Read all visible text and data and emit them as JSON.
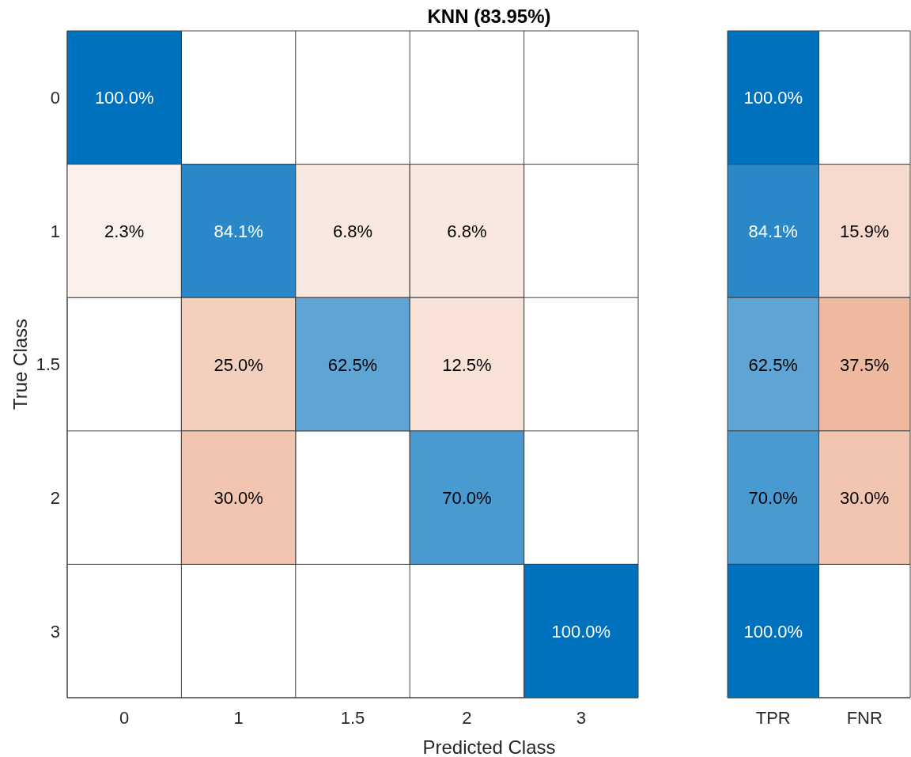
{
  "chart_data": [
    {
      "type": "heatmap",
      "title": "KNN (83.95%)",
      "xlabel": "Predicted Class",
      "ylabel": "True Class",
      "categories": [
        "0",
        "1",
        "1.5",
        "2",
        "3"
      ],
      "y_categories": [
        "0",
        "1",
        "1.5",
        "2",
        "3"
      ],
      "cells": [
        [
          100,
          null,
          null,
          null,
          null
        ],
        [
          2.3,
          84.1,
          6.8,
          6.8,
          null
        ],
        [
          null,
          25.0,
          62.5,
          12.5,
          null
        ],
        [
          null,
          30.0,
          null,
          70.0,
          null
        ],
        [
          null,
          null,
          null,
          null,
          100
        ]
      ],
      "cell_labels": [
        [
          "100.0%",
          null,
          null,
          null,
          null
        ],
        [
          "2.3%",
          "84.1%",
          "6.8%",
          "6.8%",
          null
        ],
        [
          null,
          "25.0%",
          "62.5%",
          "12.5%",
          null
        ],
        [
          null,
          "30.0%",
          null,
          "70.0%",
          null
        ],
        [
          null,
          null,
          null,
          null,
          "100.0%"
        ]
      ],
      "colors": [
        [
          "#0072bd",
          null,
          null,
          null,
          null
        ],
        [
          "#fbf0eb",
          "#2a88c8",
          "#f9e8e0",
          "#f9e8e0",
          null
        ],
        [
          null,
          "#f3cfbd",
          "#5ea5d6",
          "#f8e1d6",
          null
        ],
        [
          null,
          "#f1c5b0",
          null,
          "#4a9ad2",
          null
        ],
        [
          null,
          null,
          null,
          null,
          "#0072bd"
        ]
      ]
    },
    {
      "type": "heatmap",
      "categories": [
        "TPR",
        "FNR"
      ],
      "y_categories": [
        "0",
        "1",
        "1.5",
        "2",
        "3"
      ],
      "tick_labels": "x",
      "cells": [
        [
          100,
          null
        ],
        [
          84.1,
          15.9
        ],
        [
          62.5,
          37.5
        ],
        [
          70.0,
          30.0
        ],
        [
          100,
          null
        ]
      ],
      "cell_labels": [
        [
          "100.0%",
          null
        ],
        [
          "84.1%",
          "15.9%"
        ],
        [
          "62.5%",
          "37.5%"
        ],
        [
          "70.0%",
          "30.0%"
        ],
        [
          "100.0%",
          null
        ]
      ],
      "colors": [
        [
          "#0072bd",
          null
        ],
        [
          "#2a88c8",
          "#f6dacd"
        ],
        [
          "#5ea5d6",
          "#efb9a0"
        ],
        [
          "#4a9ad2",
          "#f1c5b0"
        ],
        [
          "#0072bd",
          null
        ]
      ]
    }
  ]
}
